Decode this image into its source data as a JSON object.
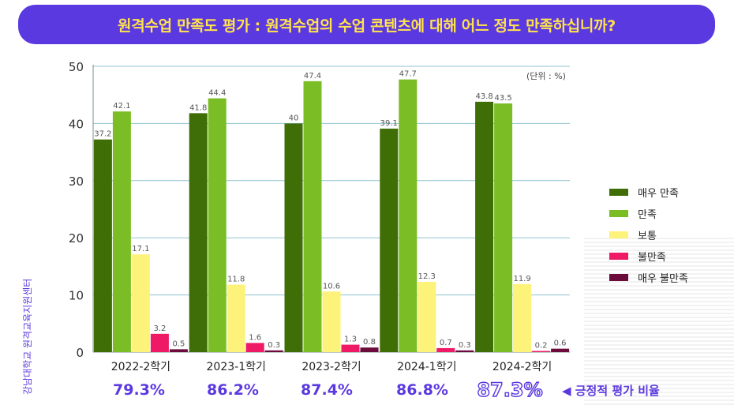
{
  "title": "원격수업 만족도 평가 : 원격수업의 수업 콘텐츠에 대해 어느 정도 만족하십니까?",
  "unit_label": "(단위 : %)",
  "source_label": "강남대학교 원격교육지원센터",
  "rate_caption": "◀ 긍정적 평가 비율",
  "positive_rates": [
    "79.3%",
    "86.2%",
    "87.4%",
    "86.8%",
    "87.3%"
  ],
  "colors": {
    "very_satisfied": "#3f6e06",
    "satisfied": "#7bbd24",
    "neutral": "#fdf27a",
    "dissatisfied": "#ee1a66",
    "very_dissatisfied": "#6b0c3d",
    "accent": "#5b39e0",
    "title_text": "#ffe34d",
    "gridline": "#8fc2cf"
  },
  "chart_data": {
    "type": "bar",
    "categories": [
      "2022-2학기",
      "2023-1학기",
      "2023-2학기",
      "2024-1학기",
      "2024-2학기"
    ],
    "series": [
      {
        "name": "매우 만족",
        "values": [
          37.2,
          41.8,
          40,
          39.1,
          43.8
        ]
      },
      {
        "name": "만족",
        "values": [
          42.1,
          44.4,
          47.4,
          47.7,
          43.5
        ]
      },
      {
        "name": "보통",
        "values": [
          17.1,
          11.8,
          10.6,
          12.3,
          11.9
        ]
      },
      {
        "name": "불만족",
        "values": [
          3.2,
          1.6,
          1.3,
          0.7,
          0.2
        ]
      },
      {
        "name": "매우 불만족",
        "values": [
          0.5,
          0.3,
          0.8,
          0.3,
          0.6
        ]
      }
    ],
    "ylim": [
      0,
      50
    ],
    "yticks": [
      0,
      10,
      20,
      30,
      40,
      50
    ],
    "grid": true,
    "legend_position": "right"
  }
}
